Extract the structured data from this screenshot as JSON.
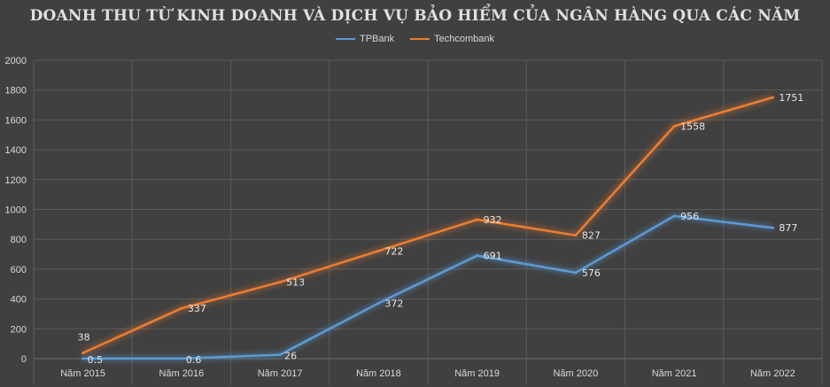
{
  "chart_data": {
    "type": "line",
    "title": "DOANH THU TỪ KINH DOANH VÀ DỊCH VỤ BẢO HIỂM CỦA NGÂN HÀNG QUA CÁC NĂM",
    "categories": [
      "Năm 2015",
      "Năm 2016",
      "Năm 2017",
      "Năm 2018",
      "Năm 2019",
      "Năm 2020",
      "Năm 2021",
      "Năm 2022"
    ],
    "series": [
      {
        "name": "TPBank",
        "color": "#5b9bd5",
        "values": [
          0.5,
          0.6,
          26,
          372,
          691,
          576,
          956,
          877
        ],
        "labels": [
          "0.5",
          "0.6",
          "26",
          "372",
          "691",
          "576",
          "956",
          "877"
        ]
      },
      {
        "name": "Techcombank",
        "color": "#ed7d31",
        "values": [
          38,
          337,
          513,
          722,
          932,
          827,
          1558,
          1751
        ],
        "labels": [
          "38",
          "337",
          "513",
          "722",
          "932",
          "827",
          "1558",
          "1751"
        ]
      }
    ],
    "ylim": [
      0,
      2000
    ],
    "yticks": [
      "0",
      "200",
      "400",
      "600",
      "800",
      "1000",
      "1200",
      "1400",
      "1600",
      "1800",
      "2000"
    ],
    "grid": true,
    "legend_position": "top",
    "background": "#404040",
    "gridline_color": "#5a5a5a"
  }
}
